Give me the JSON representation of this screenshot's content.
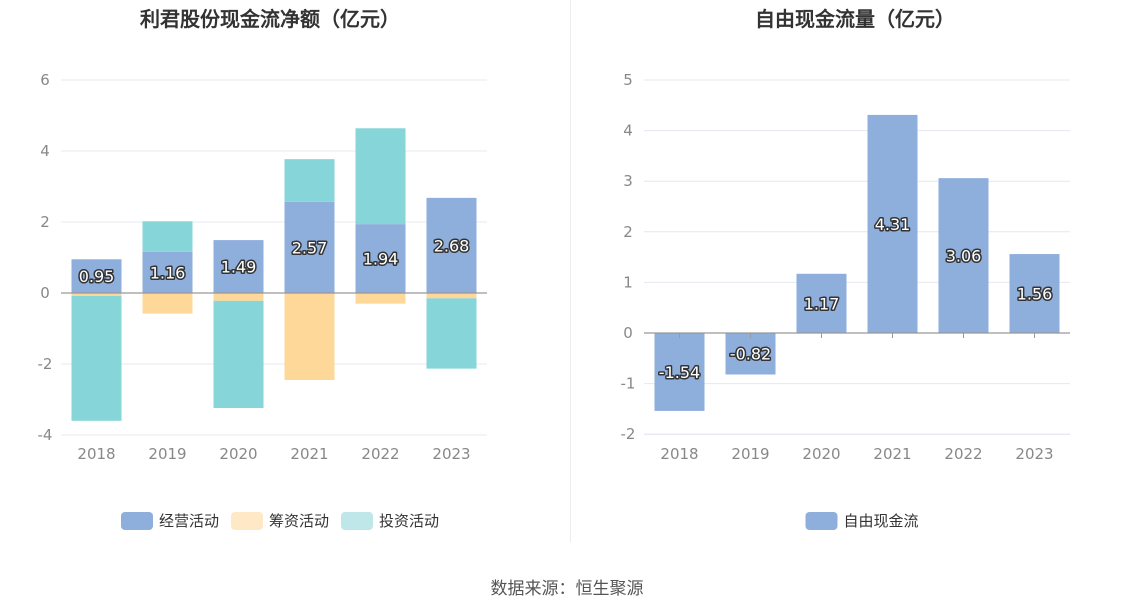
{
  "chart_data": [
    {
      "type": "bar",
      "stacked": true,
      "title": "利君股份现金流净额（亿元）",
      "categories": [
        "2018",
        "2019",
        "2020",
        "2021",
        "2022",
        "2023"
      ],
      "ylim": [
        -4,
        6
      ],
      "yticks": [
        "6",
        "4",
        "2",
        "0",
        "-2",
        "-4"
      ],
      "series": [
        {
          "name": "经营活动",
          "color": "#8eaedc",
          "values": [
            0.95,
            1.16,
            1.49,
            2.57,
            1.94,
            2.68
          ],
          "labels": [
            "0.95",
            "1.16",
            "1.49",
            "2.57",
            "1.94",
            "2.68"
          ]
        },
        {
          "name": "筹资活动",
          "color": "#fed898",
          "values": [
            -0.08,
            -0.58,
            -0.22,
            -2.45,
            -0.3,
            -0.15
          ]
        },
        {
          "name": "投资活动",
          "color": "#86d5d8",
          "values": [
            -3.52,
            0.86,
            -3.02,
            1.2,
            2.7,
            -1.98
          ]
        }
      ],
      "legend": {
        "position": "bottom",
        "colors": [
          "#8eaedc",
          "#ffe8c6",
          "#bfe7e9"
        ]
      }
    },
    {
      "type": "bar",
      "title": "自由现金流量（亿元）",
      "categories": [
        "2018",
        "2019",
        "2020",
        "2021",
        "2022",
        "2023"
      ],
      "ylim": [
        -2,
        5
      ],
      "yticks": [
        "5",
        "4",
        "3",
        "2",
        "1",
        "0",
        "-1",
        "-2"
      ],
      "series": [
        {
          "name": "自由现金流",
          "color": "#8eaedc",
          "values": [
            -1.54,
            -0.82,
            1.17,
            4.31,
            3.06,
            1.56
          ],
          "labels": [
            "-1.54",
            "-0.82",
            "1.17",
            "4.31",
            "3.06",
            "1.56"
          ]
        }
      ],
      "legend": {
        "position": "bottom",
        "colors": [
          "#8eaedc"
        ]
      }
    }
  ],
  "source": "数据来源：恒生聚源"
}
